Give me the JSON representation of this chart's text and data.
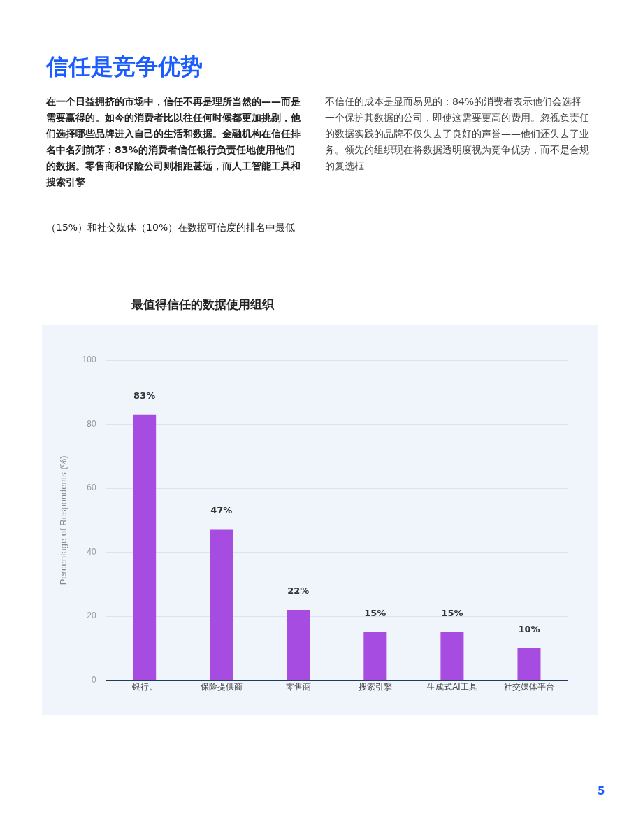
{
  "chart_data": {
    "type": "bar",
    "title": "最值得信任的数据使用组织",
    "ylabel": "Percentage of Respondents (%)",
    "categories": [
      "银行。",
      "保险提供商",
      "零售商",
      "搜索引擎",
      "生成式AI工具",
      "社交媒体平台"
    ],
    "values": [
      83,
      47,
      22,
      15,
      15,
      10
    ],
    "color": "#a64ce0",
    "ylim": [
      0,
      100
    ],
    "yticks": [
      0,
      20,
      40,
      60,
      80,
      100
    ],
    "value_labels": [
      "83%",
      "47%",
      "22%",
      "15%",
      "15%",
      "10%"
    ],
    "grid": "y",
    "legend": false,
    "annotations": [
      "信任是竞争优势",
      "在一个日益拥挤的市场中，信任不再是理所当然的——而是需要赢得的。如今的消费者比以往任何时候都更加挑剔，他们选择哪些品牌进入自己的生活和数据。金融机构在信任排名中名列前茅：83%的消费者信任银行负责任地使用他们的数据。零售商和保险公司则相距甚远，而人工智能工具和搜索引擎",
      "（15%）和社交媒体（10%）在数据可信度的排名中最低",
      "不信任的成本是显而易见的：84%的消费者表示他们会选择一个保护其数据的公司，即使这需要更高的费用。忽视负责任的数据实践的品牌不仅失去了良好的声誉——他们还失去了业务。领先的组织现在将数据透明度视为竞争优势，而不是合规的复选框",
      "5"
    ]
  }
}
